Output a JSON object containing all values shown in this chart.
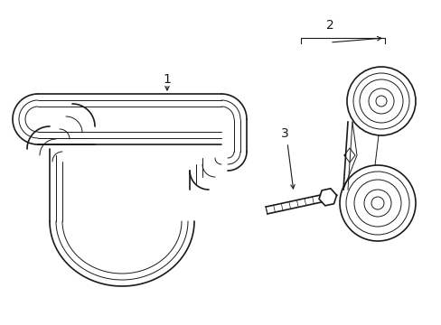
{
  "background_color": "#ffffff",
  "line_color": "#1a1a1a",
  "lw_outer": 1.2,
  "lw_inner": 0.7,
  "label_fontsize": 10,
  "fig_w": 4.89,
  "fig_h": 3.6,
  "dpi": 100
}
